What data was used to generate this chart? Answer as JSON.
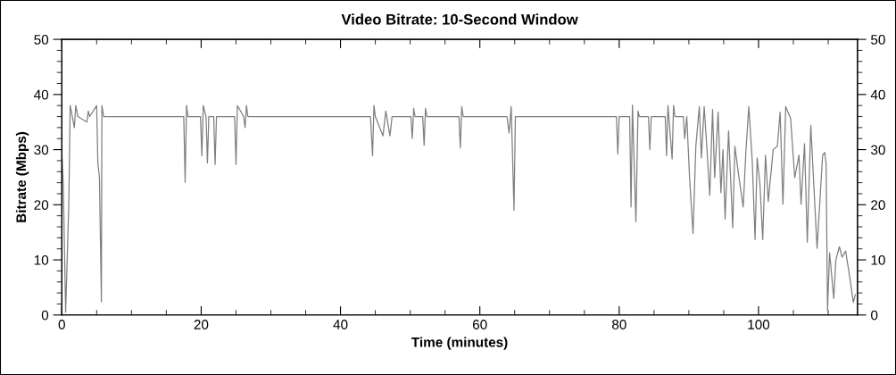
{
  "chart_data": {
    "type": "line",
    "title": "Video Bitrate: 10-Second Window",
    "xlabel": "Time (minutes)",
    "ylabel": "Bitrate (Mbps)",
    "xlim": [
      0,
      114.2
    ],
    "xticks": [
      0,
      20,
      40,
      60,
      80,
      100
    ],
    "ylim": [
      0,
      50
    ],
    "yticks": [
      0,
      10,
      20,
      30,
      40,
      50
    ],
    "y2lim": [
      0,
      50
    ],
    "y2ticks": [
      0,
      10,
      20,
      30,
      40,
      50
    ],
    "grid": false,
    "legend": false,
    "marker": "none",
    "line_style": "solid",
    "series": [
      {
        "color": "#7f7f7f",
        "x": [
          0,
          0.2,
          0.55,
          1.0,
          1.2,
          1.5,
          1.8,
          2.0,
          2.3,
          3.6,
          3.8,
          4.0,
          5.0,
          5.17,
          5.4,
          5.68,
          5.75,
          6.0,
          17.5,
          17.7,
          17.9,
          18.1,
          19.9,
          20.1,
          20.3,
          20.7,
          20.9,
          21.1,
          21.8,
          22.0,
          22.2,
          24.8,
          25.0,
          25.2,
          26.1,
          26.3,
          26.5,
          26.7,
          44.1,
          44.3,
          44.6,
          44.8,
          45.0,
          46.1,
          46.5,
          47.1,
          47.4,
          50.1,
          50.3,
          50.5,
          50.7,
          51.8,
          52.0,
          52.2,
          52.4,
          57.0,
          57.2,
          57.4,
          57.6,
          63.9,
          64.2,
          64.5,
          64.9,
          65.1,
          79.6,
          79.8,
          80.0,
          81.5,
          81.7,
          81.9,
          82.4,
          82.7,
          82.9,
          84.2,
          84.4,
          84.6,
          86.6,
          86.8,
          87.0,
          87.6,
          87.8,
          88.0,
          89.2,
          89.4,
          89.7,
          90.1,
          90.6,
          91.0,
          91.5,
          91.8,
          92.2,
          92.6,
          93.0,
          93.4,
          93.7,
          94.2,
          94.6,
          94.9,
          95.2,
          95.7,
          96.3,
          96.6,
          97.2,
          97.8,
          98.2,
          98.6,
          99.1,
          99.5,
          99.8,
          100.2,
          100.6,
          101.0,
          101.4,
          102.1,
          102.7,
          103.1,
          103.5,
          103.9,
          104.6,
          105.2,
          105.8,
          106.1,
          106.6,
          107.0,
          107.5,
          107.9,
          108.4,
          108.7,
          109.2,
          109.5,
          109.7,
          109.9,
          110.2,
          110.8,
          111.1,
          111.6,
          112.0,
          112.5,
          113.1,
          113.6,
          113.9
        ],
        "values": [
          29.7,
          24,
          0.5,
          20,
          38,
          36,
          34,
          38,
          36,
          35,
          37,
          36,
          38,
          27.6,
          25,
          2.4,
          38,
          36,
          36,
          24.1,
          38,
          36,
          36,
          28.9,
          38,
          36,
          27.6,
          36,
          36,
          27.3,
          36,
          36,
          27.3,
          38,
          36,
          34,
          38,
          36,
          36,
          36,
          28.9,
          38,
          36,
          32.5,
          37,
          32.5,
          36,
          36,
          32,
          37.5,
          36,
          36,
          30.8,
          37.5,
          36,
          36,
          30.3,
          37.8,
          36,
          36,
          33,
          37.8,
          19,
          36,
          36,
          29.2,
          36,
          36,
          19.6,
          38.1,
          16.9,
          37,
          36,
          36,
          30,
          36,
          36,
          28.9,
          38,
          28.3,
          38,
          36,
          36,
          32,
          36,
          24.9,
          14.8,
          30.6,
          37.8,
          28.5,
          37.8,
          30,
          21.7,
          37.3,
          24.9,
          36.8,
          22.2,
          30,
          17.4,
          33.4,
          15.8,
          30.6,
          24.9,
          19.6,
          30,
          37.8,
          27.9,
          13.7,
          28.5,
          23.8,
          13.7,
          29,
          20.6,
          30,
          30.6,
          36.8,
          20.1,
          37.8,
          35.7,
          24.9,
          29,
          20.1,
          31.1,
          13.2,
          34.4,
          24.4,
          12.1,
          18.4,
          29,
          29.5,
          27.4,
          0.8,
          11.3,
          3,
          10,
          12.4,
          10.5,
          11.6,
          6.8,
          2.3,
          3.7
        ]
      }
    ]
  }
}
